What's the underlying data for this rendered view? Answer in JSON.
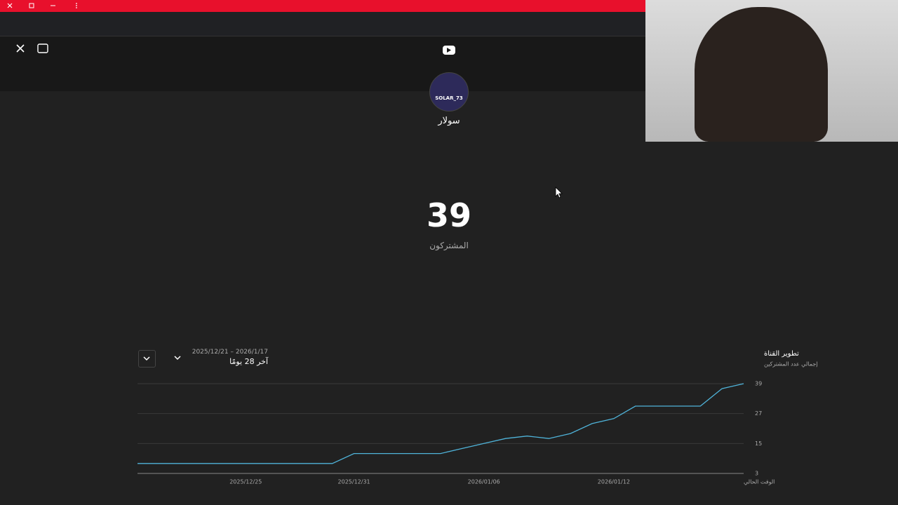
{
  "channel": {
    "avatar_text": "SOLAR_73",
    "name": "سولار"
  },
  "subscribers": {
    "count": "39",
    "label": "المشتركون"
  },
  "period": {
    "range": "2026/1/17 – 2025/12/21",
    "label": "آخر 28 يومًا"
  },
  "chart_data": {
    "type": "line",
    "title": "تطوير القناة",
    "subtitle": "إجمالي عدد المشتركين",
    "categories": [
      null,
      null,
      null,
      null,
      null,
      "2025/12/25",
      null,
      null,
      null,
      null,
      "2025/12/31",
      null,
      null,
      null,
      null,
      null,
      "2026/01/06",
      null,
      null,
      null,
      null,
      null,
      "2026/01/12",
      null,
      null,
      null,
      null,
      null,
      "الوقت الحالي"
    ],
    "series": [
      {
        "name": "إجمالي عدد المشتركين",
        "color": "#4fb3d9",
        "values": [
          7,
          7,
          7,
          7,
          7,
          7,
          7,
          7,
          7,
          7,
          11,
          11,
          11,
          11,
          11,
          13,
          15,
          17,
          18,
          17,
          19,
          23,
          25,
          30,
          30,
          30,
          30,
          37,
          39
        ]
      }
    ],
    "ylim": [
      3,
      39
    ],
    "yticks": [
      3,
      15,
      27,
      39
    ],
    "grid": true
  }
}
